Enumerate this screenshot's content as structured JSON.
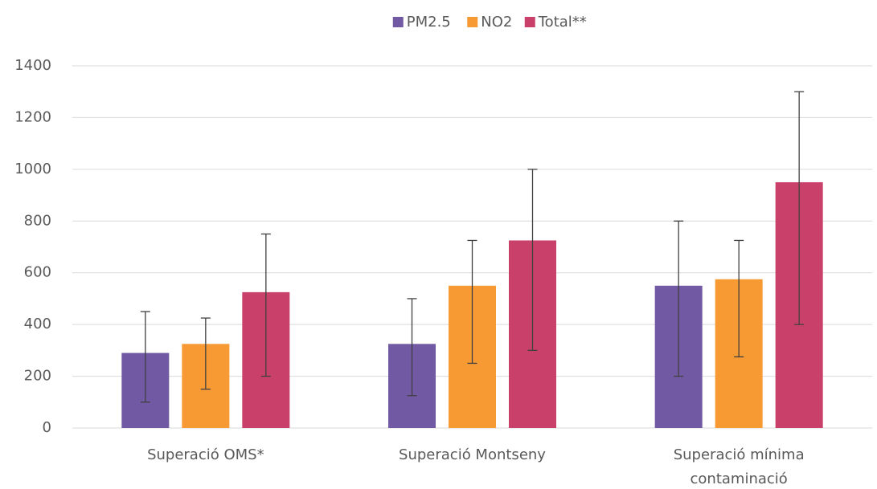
{
  "chart_data": {
    "type": "bar",
    "categories": [
      "Superació OMS*",
      "Superació Montseny",
      "Superació mínima contaminació"
    ],
    "series": [
      {
        "name": "PM2.5",
        "color": "#7159a3",
        "values": [
          290,
          325,
          550
        ],
        "lower": [
          100,
          125,
          200
        ],
        "upper": [
          450,
          500,
          800
        ]
      },
      {
        "name": "NO2",
        "color": "#f79a33",
        "values": [
          325,
          550,
          575
        ],
        "lower": [
          150,
          250,
          275
        ],
        "upper": [
          425,
          725,
          725
        ]
      },
      {
        "name": "Total**",
        "color": "#c9406a",
        "values": [
          525,
          725,
          950
        ],
        "lower": [
          200,
          300,
          400
        ],
        "upper": [
          750,
          1000,
          1300
        ]
      }
    ],
    "ylim": [
      0,
      1400
    ],
    "yticks": [
      0,
      200,
      400,
      600,
      800,
      1000,
      1200,
      1400
    ],
    "grid": true,
    "legend": "top"
  }
}
